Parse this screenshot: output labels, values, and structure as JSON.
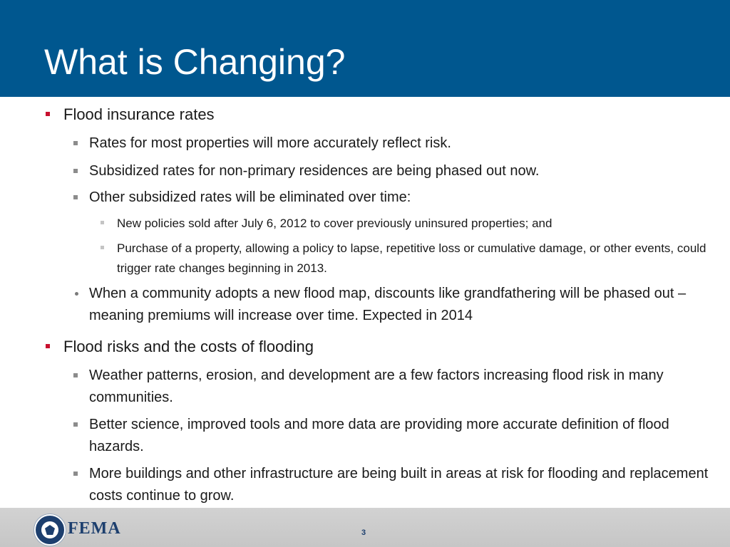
{
  "slide": {
    "title": "What is Changing?",
    "page_number": "3"
  },
  "sections": [
    {
      "heading": "Flood insurance rates",
      "items": [
        {
          "text": "Rates for most properties will more accurately reflect risk."
        },
        {
          "text": "Subsidized rates for non-primary residences are being phased out now."
        },
        {
          "text": "Other subsidized rates will be eliminated over time:",
          "subitems": [
            "New policies sold after July 6, 2012 to cover previously uninsured properties; and",
            "Purchase of a property, allowing a policy to lapse, repetitive loss or cumulative damage, or other events, could trigger rate changes beginning in 2013."
          ]
        },
        {
          "text": "When a community adopts a new flood map, discounts like grandfathering will be phased out – meaning premiums will increase over time. Expected in 2014"
        }
      ]
    },
    {
      "heading": "Flood risks and the costs of flooding",
      "items": [
        {
          "text": "Weather patterns, erosion, and development are a few factors increasing flood risk in many communities."
        },
        {
          "text": "Better science, improved tools and more data are providing more accurate definition of flood hazards."
        },
        {
          "text": "More buildings and other infrastructure are being built in areas at risk for flooding and replacement costs continue to grow."
        }
      ]
    }
  ],
  "footer": {
    "logo_text": "FEMA",
    "logo_icon": "dhs-seal-icon"
  },
  "colors": {
    "header_bg": "#00578f",
    "title_text": "#ffffff",
    "level1_bullet": "#c8102e",
    "level2_bullet": "#8c8c8c",
    "level3_bullet": "#c4c4c4",
    "footer_bg": "#cccccc",
    "logo_navy": "#1d3f6e"
  }
}
